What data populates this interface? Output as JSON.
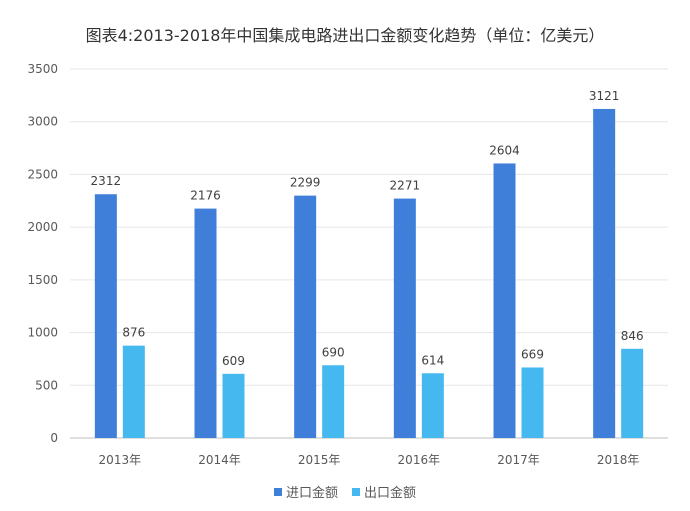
{
  "chart_data": {
    "type": "bar",
    "title": "图表4:2013-2018年中国集成电路进出口金额变化趋势（单位：亿美元）",
    "categories": [
      "2013年",
      "2014年",
      "2015年",
      "2016年",
      "2017年",
      "2018年"
    ],
    "series": [
      {
        "name": "进口金额",
        "values": [
          2312,
          2176,
          2299,
          2271,
          2604,
          3121
        ],
        "color": "#3f7fd9"
      },
      {
        "name": "出口金额",
        "values": [
          876,
          609,
          690,
          614,
          669,
          846
        ],
        "color": "#45b8f0"
      }
    ],
    "yticks": [
      0,
      500,
      1000,
      1500,
      2000,
      2500,
      3000,
      3500
    ],
    "ylim": [
      0,
      3500
    ],
    "grid": true,
    "legend_position": "bottom-center",
    "xlabel": "",
    "ylabel": ""
  }
}
